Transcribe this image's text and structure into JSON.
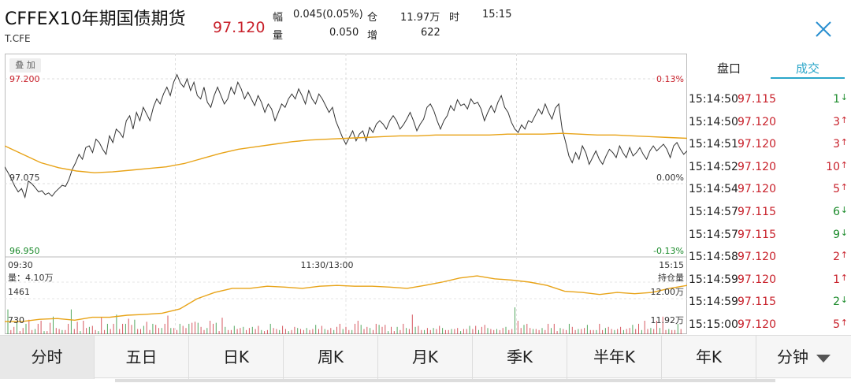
{
  "header": {
    "title": "CFFEX10年期国债期货",
    "code": "T.CFE",
    "price": "97.120",
    "stats": {
      "fu_label": "幅",
      "fu_value": "0.045(0.05%)",
      "cang_label": "仓",
      "cang_value": "11.97万",
      "shi_label": "时",
      "shi_value": "15:15",
      "liang_label": "量",
      "liang_value": "0.050",
      "zeng_label": "增",
      "zeng_value": "622"
    },
    "close_icon": "close-icon"
  },
  "chart": {
    "overlay_label": "叠 加",
    "y_left": {
      "top": "97.200",
      "mid": "97.075",
      "bottom": "96.950"
    },
    "y_right": {
      "top": "0.13%",
      "mid": "0.00%",
      "bottom": "-0.13%"
    },
    "time_start": "09:30",
    "time_mid": "11:30/13:00",
    "time_end": "15:15",
    "vol_label": "量：4.10万",
    "vol_1461": "1461",
    "vol_730": "730",
    "oi_label": "持仓量",
    "oi_top": "12.00万",
    "oi_bottom": "11.92万"
  },
  "colors": {
    "red": "#c8202a",
    "green": "#1a8a2a",
    "avg_line": "#e8a317",
    "tab_accent": "#2aa6c9"
  },
  "chart_data": {
    "type": "line",
    "price_series": [
      97.095,
      97.088,
      97.08,
      97.07,
      97.06,
      97.066,
      97.05,
      97.078,
      97.075,
      97.068,
      97.06,
      97.062,
      97.055,
      97.058,
      97.052,
      97.06,
      97.066,
      97.072,
      97.07,
      97.08,
      97.092,
      97.1,
      97.11,
      97.104,
      97.118,
      97.12,
      97.112,
      97.128,
      97.124,
      97.116,
      97.11,
      97.132,
      97.124,
      97.14,
      97.136,
      97.13,
      97.15,
      97.156,
      97.14,
      97.16,
      97.15,
      97.166,
      97.158,
      97.15,
      97.166,
      97.176,
      97.17,
      97.182,
      97.19,
      97.18,
      97.196,
      97.205,
      97.195,
      97.19,
      97.2,
      97.186,
      97.196,
      97.18,
      97.176,
      97.19,
      97.172,
      97.166,
      97.18,
      97.19,
      97.18,
      97.17,
      97.176,
      97.19,
      97.182,
      97.196,
      97.188,
      97.176,
      97.184,
      97.176,
      97.168,
      97.18,
      97.172,
      97.16,
      97.17,
      97.164,
      97.15,
      97.16,
      97.17,
      97.166,
      97.176,
      97.182,
      97.176,
      97.188,
      97.18,
      97.17,
      97.186,
      97.176,
      97.17,
      97.182,
      97.176,
      97.168,
      97.16,
      97.166,
      97.15,
      97.14,
      97.13,
      97.122,
      97.13,
      97.138,
      97.126,
      97.134,
      97.138,
      97.126,
      97.142,
      97.136,
      97.146,
      97.15,
      97.146,
      97.14,
      97.15,
      97.156,
      97.15,
      97.14,
      97.145,
      97.152,
      97.16,
      97.15,
      97.138,
      97.146,
      97.152,
      97.166,
      97.17,
      97.162,
      97.15,
      97.14,
      97.15,
      97.156,
      97.168,
      97.162,
      97.175,
      97.168,
      97.17,
      97.164,
      97.176,
      97.17,
      97.172,
      97.164,
      97.15,
      97.16,
      97.168,
      97.16,
      97.172,
      97.18,
      97.166,
      97.16,
      97.148,
      97.14,
      97.136,
      97.145,
      97.14,
      97.15,
      97.148,
      97.156,
      97.164,
      97.158,
      97.17,
      97.16,
      97.152,
      97.165,
      97.17,
      97.14,
      97.125,
      97.108,
      97.1,
      97.112,
      97.104,
      97.12,
      97.112,
      97.098,
      97.106,
      97.114,
      97.104,
      97.098,
      97.108,
      97.116,
      97.112,
      97.106,
      97.12,
      97.112,
      97.106,
      97.118,
      97.108,
      97.112,
      97.118,
      97.11,
      97.104,
      97.114,
      97.12,
      97.114,
      97.118,
      97.122,
      97.116,
      97.106,
      97.12,
      97.124,
      97.116,
      97.11,
      97.114
    ],
    "avg_series": [
      97.12,
      97.11,
      97.1,
      97.094,
      97.09,
      97.088,
      97.089,
      97.091,
      97.093,
      97.095,
      97.099,
      97.105,
      97.111,
      97.116,
      97.119,
      97.122,
      97.125,
      97.127,
      97.128,
      97.129,
      97.13,
      97.131,
      97.132,
      97.132,
      97.133,
      97.133,
      97.133,
      97.133,
      97.134,
      97.134,
      97.134,
      97.135,
      97.134,
      97.133,
      97.133,
      97.132,
      97.131,
      97.13,
      97.129
    ],
    "oi_series": [
      11.905,
      11.905,
      11.91,
      11.912,
      11.908,
      11.915,
      11.915,
      11.92,
      11.922,
      11.925,
      11.935,
      11.96,
      11.975,
      11.985,
      11.985,
      11.99,
      11.988,
      11.985,
      11.99,
      11.992,
      11.99,
      11.99,
      11.988,
      11.985,
      11.992,
      12.0,
      12.01,
      12.015,
      12.008,
      12.005,
      12.0,
      11.992,
      11.978,
      11.975,
      11.97,
      11.975,
      11.972,
      11.975,
      11.985,
      11.992
    ],
    "volume_bars": [
      24,
      4,
      7,
      11,
      3,
      6,
      10,
      14,
      4,
      5,
      10,
      13,
      3,
      3,
      11,
      17,
      6,
      5,
      4,
      4,
      10,
      24,
      5,
      12,
      3,
      13,
      6,
      7,
      8,
      4,
      3,
      16,
      4,
      10,
      5,
      10,
      19,
      5,
      10,
      10,
      15,
      9,
      14,
      5,
      5,
      8,
      12,
      4,
      10,
      9,
      6,
      6,
      10,
      18,
      6,
      6,
      4,
      10,
      8,
      6,
      10,
      11,
      12,
      11,
      7,
      4,
      6,
      13,
      10,
      11,
      3,
      16,
      7,
      4,
      4,
      8,
      5,
      6,
      7,
      4,
      6,
      7,
      5,
      8,
      4,
      3,
      4,
      10,
      6,
      5,
      4,
      8,
      5,
      3,
      4,
      7,
      6,
      5,
      4,
      6,
      4,
      5,
      9,
      5,
      8,
      5,
      4,
      6,
      4,
      7,
      10,
      5,
      7,
      4,
      4,
      10,
      13,
      9,
      5,
      7,
      6,
      4,
      10,
      9,
      7,
      9,
      3,
      7,
      3,
      7,
      4,
      10,
      6,
      5,
      19,
      7,
      8,
      4,
      4,
      6,
      4,
      6,
      5,
      8,
      6,
      4,
      4,
      5,
      5,
      6,
      3,
      5,
      5,
      8,
      5,
      8,
      4,
      7,
      9,
      6,
      5,
      4,
      5,
      4,
      6,
      7,
      4,
      5,
      26,
      13,
      6,
      9,
      10,
      6,
      5,
      5,
      4,
      6,
      4,
      10,
      6,
      10,
      3,
      6,
      5,
      4,
      10,
      7,
      4,
      5,
      5,
      6,
      9,
      4,
      4,
      4,
      10,
      4,
      6,
      7,
      5,
      4,
      5,
      7,
      4,
      5,
      6,
      9,
      5,
      10,
      4,
      13,
      5,
      6,
      5,
      13,
      6,
      17,
      4,
      5,
      4,
      4,
      10,
      5
    ],
    "price_ylim": [
      96.95,
      97.2
    ],
    "oi_ylim": [
      11.92,
      12.0
    ],
    "vol_ymax": 1461
  },
  "trades": [
    {
      "time": "15:14:50",
      "price": "97.115",
      "vol": "1",
      "dir": "down"
    },
    {
      "time": "15:14:50",
      "price": "97.120",
      "vol": "3",
      "dir": "up"
    },
    {
      "time": "15:14:51",
      "price": "97.120",
      "vol": "3",
      "dir": "up"
    },
    {
      "time": "15:14:52",
      "price": "97.120",
      "vol": "10",
      "dir": "up"
    },
    {
      "time": "15:14:54",
      "price": "97.120",
      "vol": "5",
      "dir": "up"
    },
    {
      "time": "15:14:57",
      "price": "97.115",
      "vol": "6",
      "dir": "down"
    },
    {
      "time": "15:14:57",
      "price": "97.115",
      "vol": "9",
      "dir": "down"
    },
    {
      "time": "15:14:58",
      "price": "97.120",
      "vol": "2",
      "dir": "up"
    },
    {
      "time": "15:14:59",
      "price": "97.120",
      "vol": "1",
      "dir": "up"
    },
    {
      "time": "15:14:59",
      "price": "97.115",
      "vol": "2",
      "dir": "down"
    },
    {
      "time": "15:15:00",
      "price": "97.120",
      "vol": "5",
      "dir": "up"
    }
  ],
  "rtabs": {
    "pankou": "盘口",
    "chengjiao": "成交"
  },
  "tabs": [
    "分时",
    "五日",
    "日K",
    "周K",
    "月K",
    "季K",
    "半年K",
    "年K",
    "分钟"
  ]
}
